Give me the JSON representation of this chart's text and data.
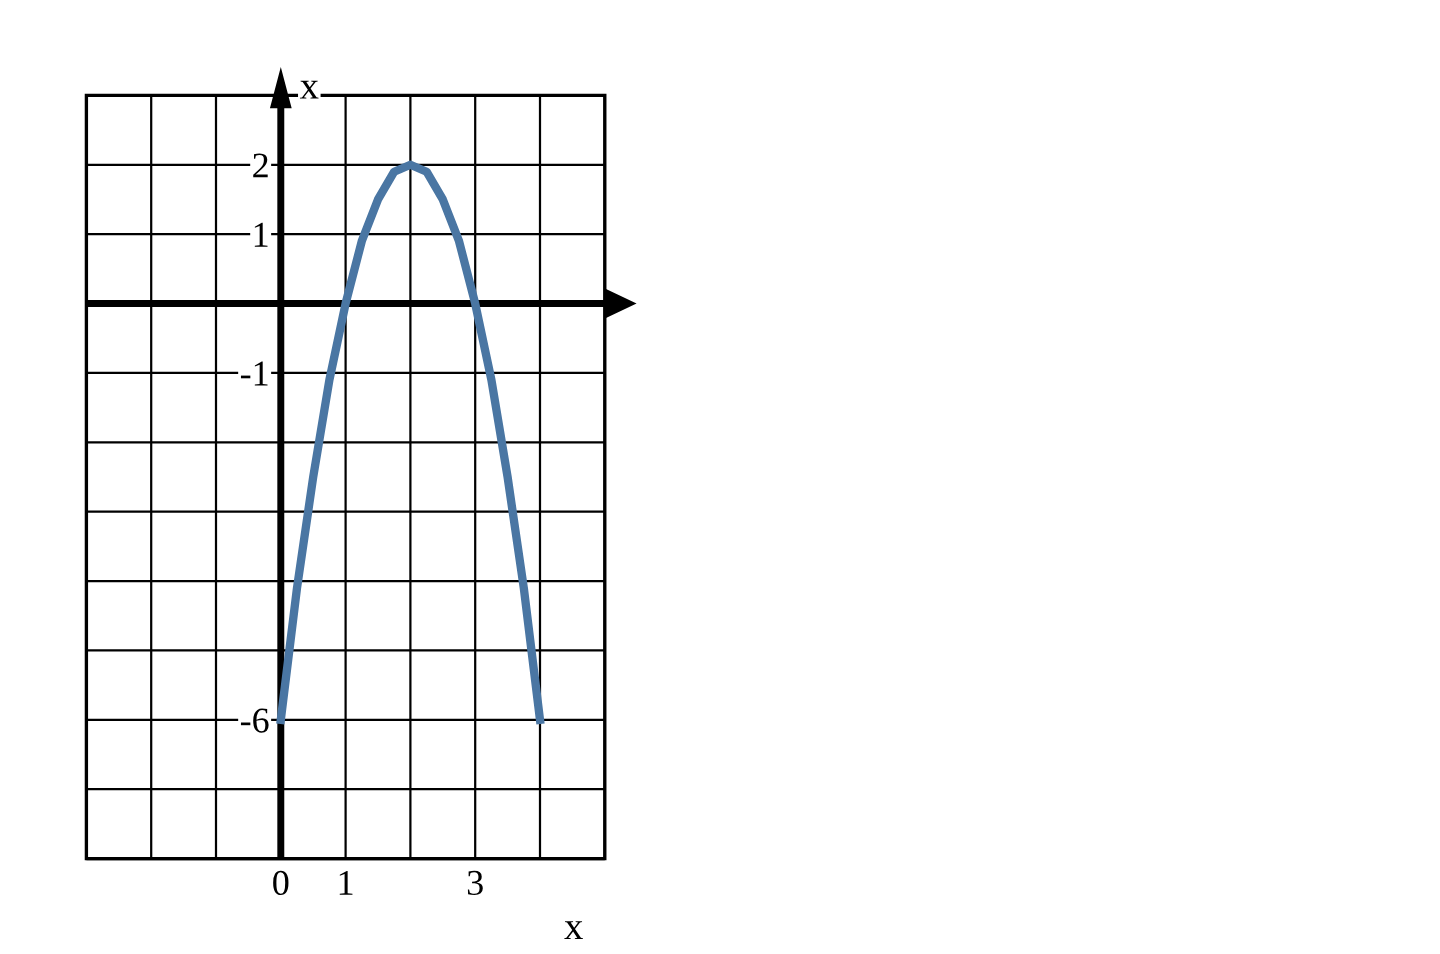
{
  "chart_data": {
    "type": "line",
    "xlabel": "x",
    "ylabel": "x",
    "series": [
      {
        "color": "#4a76a3",
        "x": [
          0,
          0.25,
          0.5,
          0.75,
          1,
          1.25,
          1.5,
          1.75,
          2,
          2.25,
          2.5,
          2.75,
          3,
          3.25,
          3.5,
          3.75,
          4
        ],
        "values": [
          -6,
          -4.1,
          -2.5,
          -1.1,
          0,
          0.9,
          1.5,
          1.9,
          2,
          1.9,
          1.5,
          0.9,
          0,
          -1.1,
          -2.5,
          -4.1,
          -6
        ]
      }
    ],
    "xlim": [
      -3,
      5
    ],
    "ylim": [
      -8,
      3
    ],
    "xticks": [
      {
        "value": -3,
        "label": null
      },
      {
        "value": -2,
        "label": null
      },
      {
        "value": -1,
        "label": null
      },
      0,
      1,
      {
        "value": 2,
        "label": null
      },
      3,
      {
        "value": 4,
        "label": null
      },
      {
        "value": 5,
        "label": null
      }
    ],
    "yticks": [
      {
        "value": -8,
        "label": null
      },
      {
        "value": -7,
        "label": null
      },
      -6,
      {
        "value": -5,
        "label": null
      },
      {
        "value": -4,
        "label": null
      },
      {
        "value": -3,
        "label": null
      },
      {
        "value": -2,
        "label": null
      },
      -1,
      {
        "value": 0,
        "label": null
      },
      1,
      2,
      {
        "value": 3,
        "label": null
      }
    ],
    "grid": true,
    "legend": false,
    "marker": "none",
    "line_style": "solid"
  }
}
